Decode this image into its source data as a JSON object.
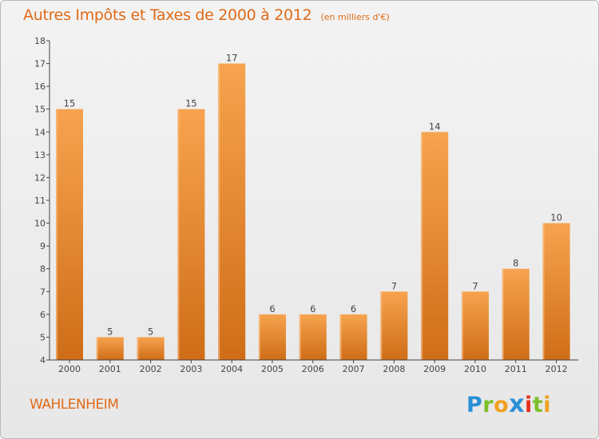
{
  "title": "Autres Impôts et Taxes de 2000 à 2012",
  "subtitle": "(en milliers d'€)",
  "commune": "WAHLENHEIM",
  "logo": {
    "letters": [
      "P",
      "r",
      "o",
      "x",
      "i",
      "t",
      "i"
    ],
    "colors": [
      "#2a8fd6",
      "#7bbf2a",
      "#f0a020",
      "#2a8fd6",
      "#e53020",
      "#7bbf2a",
      "#f0a020"
    ]
  },
  "colors": {
    "title": "#e06a17",
    "bar_light": "#f7a34f",
    "bar_dark": "#cf6d17",
    "axis": "#444444"
  },
  "chart_data": {
    "type": "bar",
    "categories": [
      "2000",
      "2001",
      "2002",
      "2003",
      "2004",
      "2005",
      "2006",
      "2007",
      "2008",
      "2009",
      "2010",
      "2011",
      "2012"
    ],
    "values": [
      15,
      5,
      5,
      15,
      17,
      6,
      6,
      6,
      7,
      14,
      7,
      8,
      10
    ],
    "ylim": [
      4,
      18
    ],
    "yticks": [
      4,
      5,
      6,
      7,
      8,
      9,
      10,
      11,
      12,
      13,
      14,
      15,
      16,
      17,
      18
    ],
    "data_labels": true,
    "grid": false,
    "legend": "none"
  }
}
